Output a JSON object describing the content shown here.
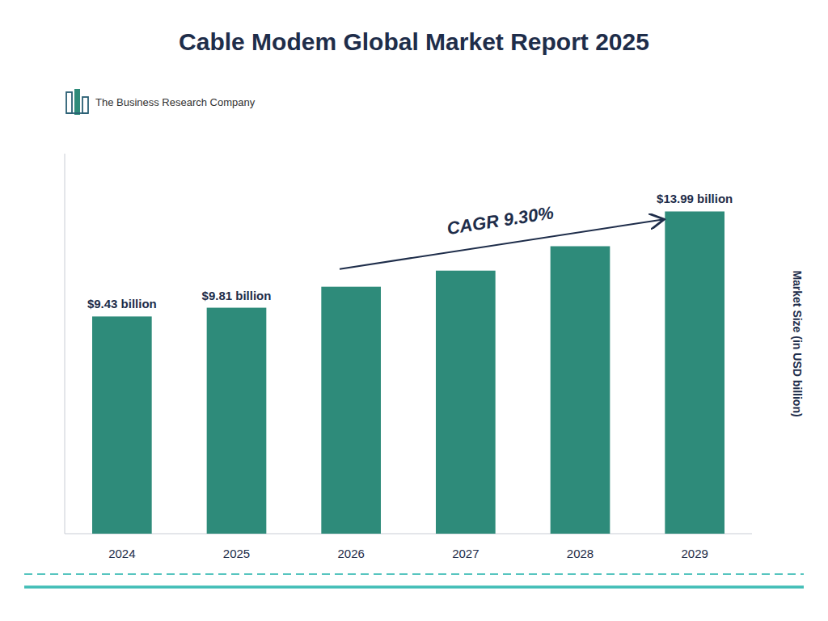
{
  "chart_data": {
    "type": "bar",
    "title": "Cable Modem Global Market Report 2025",
    "y_label": "Market Size (in USD billion)",
    "categories": [
      "2024",
      "2025",
      "2026",
      "2027",
      "2028",
      "2029"
    ],
    "values": [
      9.43,
      9.81,
      10.72,
      11.42,
      12.48,
      13.99
    ],
    "value_labels": [
      "$9.43 billion",
      "$9.81 billion",
      null,
      null,
      null,
      "$13.99 billion"
    ],
    "data_labels": true,
    "color": "#2e8b7a",
    "ylim": [
      0,
      16.5
    ],
    "grid": false,
    "tick_labels": "x",
    "annotations": [
      "CAGR 9.30%",
      "The Business Research Company"
    ]
  }
}
